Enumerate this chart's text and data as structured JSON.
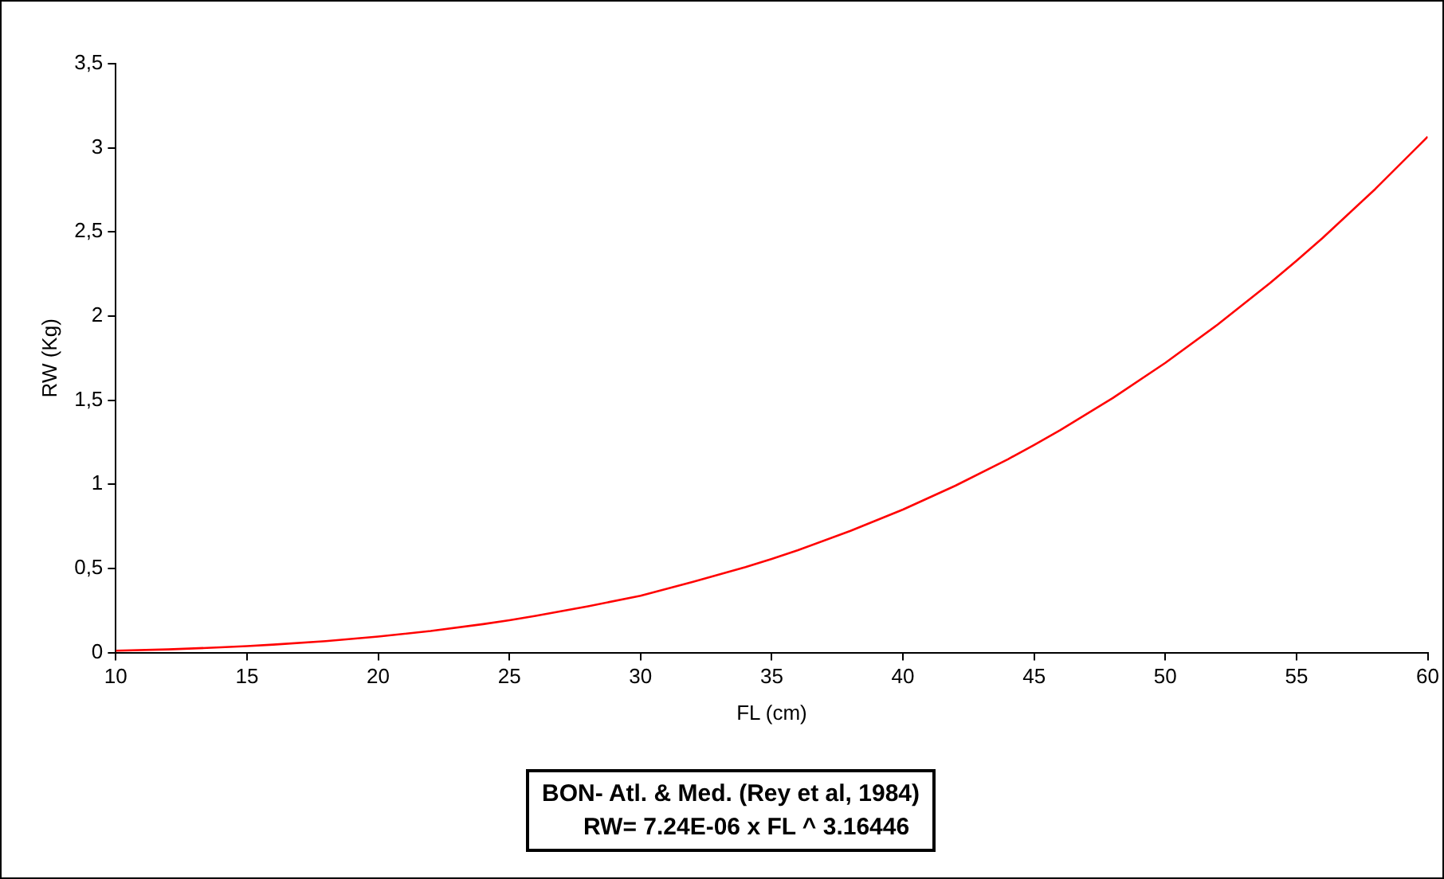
{
  "chart_data": {
    "type": "line",
    "xlabel": "FL (cm)",
    "ylabel": "RW (Kg)",
    "x": [
      10,
      12,
      14,
      15,
      16,
      18,
      20,
      22,
      24,
      25,
      26,
      28,
      30,
      32,
      34,
      35,
      36,
      38,
      40,
      42,
      44,
      45,
      46,
      48,
      50,
      52,
      54,
      55,
      56,
      58,
      60
    ],
    "series": [
      {
        "color": "#ff0000",
        "values": [
          0.011,
          0.019,
          0.031,
          0.038,
          0.047,
          0.068,
          0.095,
          0.128,
          0.169,
          0.192,
          0.218,
          0.275,
          0.338,
          0.42,
          0.508,
          0.557,
          0.609,
          0.723,
          0.85,
          0.992,
          1.149,
          1.234,
          1.323,
          1.513,
          1.722,
          1.95,
          2.197,
          2.329,
          2.465,
          2.755,
          3.066
        ]
      }
    ],
    "xlim": [
      10,
      60
    ],
    "xticks": [
      10,
      15,
      20,
      25,
      30,
      35,
      40,
      45,
      50,
      55,
      60
    ],
    "ylim": [
      0,
      3.5
    ],
    "yticks": [
      0,
      {
        "value": 0.5,
        "label": "0,5"
      },
      1,
      {
        "value": 1.5,
        "label": "1,5"
      },
      2,
      {
        "value": 2.5,
        "label": "2,5"
      },
      3,
      {
        "value": 3.5,
        "label": "3,5"
      }
    ],
    "grid": false,
    "legend": false,
    "marker": "none",
    "line_style": "solid",
    "annotations": [
      "BON- Atl. & Med. (Rey et al, 1984)",
      "RW= 7.24E-06 x FL ^ 3.16446"
    ]
  }
}
